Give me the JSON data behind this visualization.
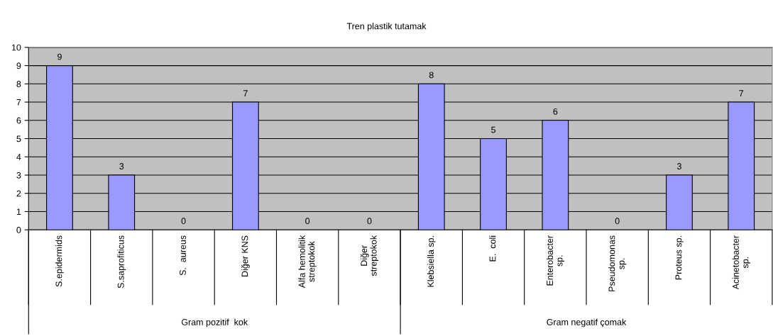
{
  "chart_data": {
    "type": "bar",
    "title": "Tren plastik tutamak",
    "categories": [
      "S.epidermids",
      "S.saprofiticus",
      "S.  aureus",
      "Diğer KNS",
      "Alfa hemolitik\nstreptokok",
      "Diğer\nstreptokok",
      "Klebsiella sp.",
      "E.  coli",
      "Enterobacter\nsp.",
      "Pseudomonas\nsp.",
      "Proteus sp.",
      "Acinetobacter\nsp."
    ],
    "values": [
      9,
      3,
      0,
      7,
      0,
      0,
      8,
      5,
      6,
      0,
      3,
      7
    ],
    "color": "#9999ff",
    "ylim": [
      0,
      10
    ],
    "yticks": [
      0,
      1,
      2,
      3,
      4,
      5,
      6,
      7,
      8,
      9,
      10
    ],
    "grid": "y",
    "data_labels": true,
    "annotations": [
      "Gram pozitif  kok",
      "Gram negatif çomak"
    ]
  }
}
